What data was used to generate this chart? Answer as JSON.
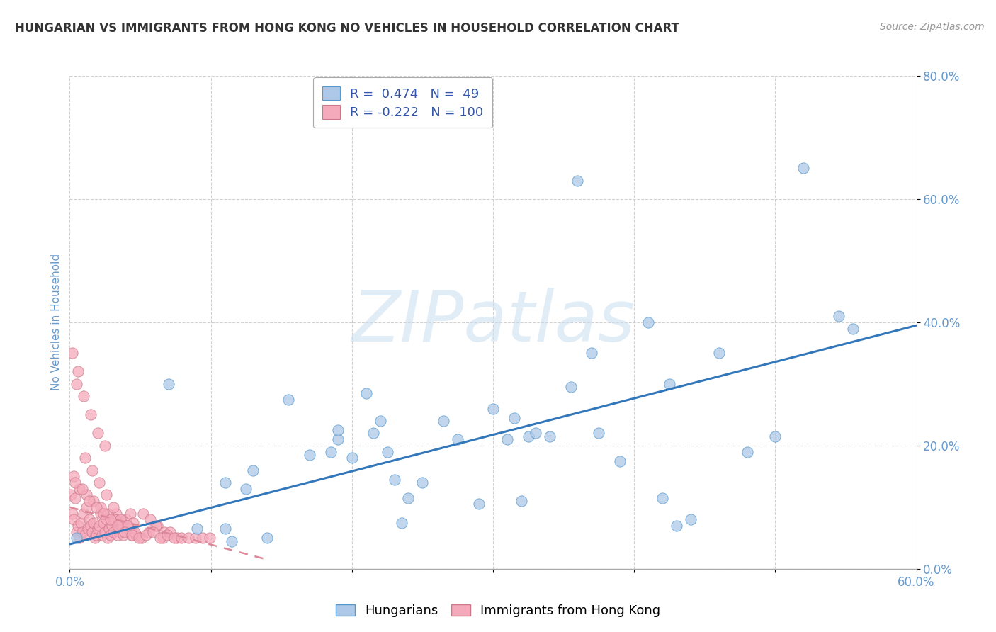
{
  "title": "HUNGARIAN VS IMMIGRANTS FROM HONG KONG NO VEHICLES IN HOUSEHOLD CORRELATION CHART",
  "source": "Source: ZipAtlas.com",
  "ylabel": "No Vehicles in Household",
  "watermark": "ZIPatlas",
  "blue_color": "#adc8e8",
  "blue_edge_color": "#5599cc",
  "pink_color": "#f5aabb",
  "pink_edge_color": "#cc7788",
  "blue_line_color": "#3377bb",
  "pink_line_color": "#dd8899",
  "background_color": "#ffffff",
  "grid_color": "#cccccc",
  "axis_tick_color": "#6699cc",
  "title_color": "#333333",
  "source_color": "#999999",
  "xlim": [
    0.0,
    0.6
  ],
  "ylim": [
    0.0,
    0.8
  ],
  "blue_scatter_x": [
    0.005,
    0.07,
    0.09,
    0.11,
    0.11,
    0.115,
    0.125,
    0.13,
    0.14,
    0.155,
    0.17,
    0.185,
    0.19,
    0.19,
    0.2,
    0.21,
    0.215,
    0.22,
    0.225,
    0.23,
    0.235,
    0.24,
    0.25,
    0.265,
    0.275,
    0.29,
    0.3,
    0.31,
    0.315,
    0.32,
    0.325,
    0.33,
    0.34,
    0.355,
    0.36,
    0.37,
    0.375,
    0.39,
    0.41,
    0.42,
    0.425,
    0.43,
    0.44,
    0.46,
    0.48,
    0.5,
    0.52,
    0.545,
    0.555
  ],
  "blue_scatter_y": [
    0.05,
    0.3,
    0.065,
    0.065,
    0.14,
    0.045,
    0.13,
    0.16,
    0.05,
    0.275,
    0.185,
    0.19,
    0.21,
    0.225,
    0.18,
    0.285,
    0.22,
    0.24,
    0.19,
    0.145,
    0.075,
    0.115,
    0.14,
    0.24,
    0.21,
    0.105,
    0.26,
    0.21,
    0.245,
    0.11,
    0.215,
    0.22,
    0.215,
    0.295,
    0.63,
    0.35,
    0.22,
    0.175,
    0.4,
    0.115,
    0.3,
    0.07,
    0.08,
    0.35,
    0.19,
    0.215,
    0.65,
    0.41,
    0.39
  ],
  "pink_scatter_x": [
    0.001,
    0.002,
    0.003,
    0.004,
    0.005,
    0.006,
    0.007,
    0.008,
    0.009,
    0.01,
    0.011,
    0.012,
    0.013,
    0.014,
    0.015,
    0.016,
    0.017,
    0.018,
    0.019,
    0.02,
    0.021,
    0.022,
    0.023,
    0.024,
    0.025,
    0.026,
    0.027,
    0.028,
    0.029,
    0.03,
    0.031,
    0.032,
    0.033,
    0.034,
    0.035,
    0.036,
    0.037,
    0.038,
    0.039,
    0.04,
    0.041,
    0.042,
    0.043,
    0.044,
    0.045,
    0.005,
    0.01,
    0.015,
    0.02,
    0.025,
    0.003,
    0.007,
    0.012,
    0.017,
    0.022,
    0.027,
    0.032,
    0.037,
    0.042,
    0.047,
    0.052,
    0.057,
    0.062,
    0.067,
    0.002,
    0.006,
    0.011,
    0.016,
    0.021,
    0.026,
    0.031,
    0.036,
    0.041,
    0.046,
    0.051,
    0.056,
    0.061,
    0.066,
    0.071,
    0.076,
    0.004,
    0.009,
    0.014,
    0.019,
    0.024,
    0.029,
    0.034,
    0.039,
    0.044,
    0.049,
    0.054,
    0.059,
    0.064,
    0.069,
    0.074,
    0.079,
    0.084,
    0.089,
    0.094,
    0.099
  ],
  "pink_scatter_y": [
    0.12,
    0.09,
    0.08,
    0.115,
    0.06,
    0.07,
    0.05,
    0.075,
    0.06,
    0.09,
    0.055,
    0.1,
    0.065,
    0.08,
    0.07,
    0.06,
    0.075,
    0.05,
    0.055,
    0.065,
    0.07,
    0.09,
    0.055,
    0.075,
    0.06,
    0.08,
    0.05,
    0.065,
    0.055,
    0.07,
    0.06,
    0.08,
    0.09,
    0.055,
    0.07,
    0.065,
    0.075,
    0.055,
    0.06,
    0.08,
    0.07,
    0.065,
    0.09,
    0.055,
    0.075,
    0.3,
    0.28,
    0.25,
    0.22,
    0.2,
    0.15,
    0.13,
    0.12,
    0.11,
    0.1,
    0.09,
    0.08,
    0.07,
    0.065,
    0.055,
    0.09,
    0.08,
    0.07,
    0.06,
    0.35,
    0.32,
    0.18,
    0.16,
    0.14,
    0.12,
    0.1,
    0.08,
    0.07,
    0.06,
    0.05,
    0.06,
    0.07,
    0.05,
    0.06,
    0.05,
    0.14,
    0.13,
    0.11,
    0.1,
    0.09,
    0.08,
    0.07,
    0.06,
    0.055,
    0.05,
    0.055,
    0.06,
    0.05,
    0.055,
    0.05,
    0.05,
    0.05,
    0.05,
    0.05,
    0.05
  ],
  "blue_line_x0": 0.0,
  "blue_line_x1": 0.6,
  "blue_line_y0": 0.04,
  "blue_line_y1": 0.395,
  "pink_line_x0": 0.0,
  "pink_line_x1": 0.14,
  "pink_line_y0": 0.1,
  "pink_line_y1": 0.015,
  "blue_R": 0.474,
  "blue_N": 49,
  "pink_R": -0.222,
  "pink_N": 100
}
